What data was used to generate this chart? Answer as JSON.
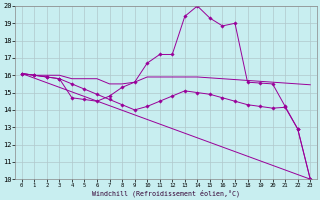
{
  "xlabel": "Windchill (Refroidissement éolien,°C)",
  "bg_color": "#c8eef0",
  "grid_color": "#b0c8cc",
  "line_color": "#990099",
  "xlim": [
    -0.5,
    23.5
  ],
  "ylim": [
    10,
    20
  ],
  "xticks": [
    0,
    1,
    2,
    3,
    4,
    5,
    6,
    7,
    8,
    9,
    10,
    11,
    12,
    13,
    14,
    15,
    16,
    17,
    18,
    19,
    20,
    21,
    22,
    23
  ],
  "yticks": [
    10,
    11,
    12,
    13,
    14,
    15,
    16,
    17,
    18,
    19,
    20
  ],
  "line1_x": [
    0,
    1,
    2,
    3,
    4,
    5,
    6,
    7,
    8,
    9,
    10,
    11,
    12,
    13,
    14,
    15,
    16,
    17,
    18,
    19,
    20,
    21,
    22,
    23
  ],
  "line1_y": [
    16.1,
    16.0,
    16.0,
    16.0,
    15.8,
    15.8,
    15.8,
    15.5,
    15.5,
    15.6,
    15.9,
    15.9,
    15.9,
    15.9,
    15.9,
    15.85,
    15.8,
    15.75,
    15.7,
    15.65,
    15.6,
    15.55,
    15.5,
    15.45
  ],
  "line2_x": [
    0,
    1,
    2,
    3,
    4,
    5,
    6,
    7,
    8,
    9,
    10,
    11,
    12,
    13,
    14,
    15,
    16,
    17,
    18,
    19,
    20,
    21,
    22,
    23
  ],
  "line2_y": [
    16.1,
    16.0,
    15.9,
    15.8,
    14.7,
    14.6,
    14.5,
    14.8,
    15.3,
    15.6,
    16.7,
    17.2,
    17.2,
    19.4,
    20.0,
    19.3,
    18.85,
    19.0,
    15.6,
    15.55,
    15.5,
    14.2,
    12.9,
    10.0
  ],
  "line3_x": [
    0,
    1,
    2,
    3,
    4,
    5,
    6,
    7,
    8,
    9,
    10,
    11,
    12,
    13,
    14,
    15,
    16,
    17,
    18,
    19,
    20,
    21,
    22,
    23
  ],
  "line3_y": [
    16.1,
    16.0,
    15.9,
    15.8,
    15.5,
    15.2,
    14.9,
    14.6,
    14.3,
    14.0,
    14.2,
    14.5,
    14.8,
    15.1,
    15.0,
    14.9,
    14.7,
    14.5,
    14.3,
    14.2,
    14.1,
    14.15,
    12.9,
    10.0
  ],
  "line4_x": [
    0,
    23
  ],
  "line4_y": [
    16.1,
    10.0
  ]
}
